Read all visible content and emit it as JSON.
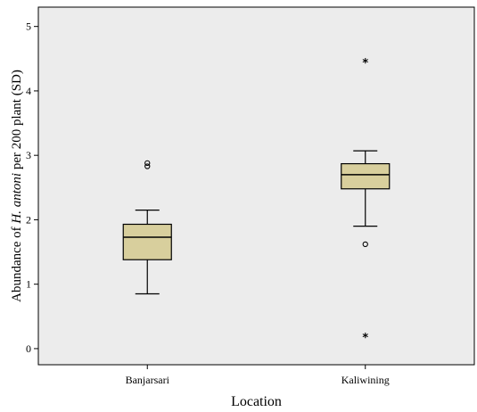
{
  "chart_data": {
    "type": "boxplot",
    "title": "",
    "xlabel": "Location",
    "ylabel": {
      "prefix": "Abundance of ",
      "species": "H. antoni",
      "suffix": " per 200 plant (SD)"
    },
    "ylim": [
      -0.25,
      5.3
    ],
    "yticks": [
      0,
      1,
      2,
      3,
      4,
      5
    ],
    "grid": false,
    "colors": {
      "box_fill": "#d8cf9d",
      "plot_bg": "#ececec",
      "line": "#000000"
    },
    "categories": [
      "Banjarsari",
      "Kaliwining"
    ],
    "boxes": [
      {
        "category": "Banjarsari",
        "whisker_low": 0.85,
        "q1": 1.38,
        "median": 1.73,
        "q3": 1.93,
        "whisker_high": 2.15,
        "outliers": [
          {
            "value": 2.88,
            "symbol": "circle"
          },
          {
            "value": 2.83,
            "symbol": "circle"
          }
        ]
      },
      {
        "category": "Kaliwining",
        "whisker_low": 1.9,
        "q1": 2.48,
        "median": 2.7,
        "q3": 2.87,
        "whisker_high": 3.07,
        "outliers": [
          {
            "value": 1.62,
            "symbol": "circle"
          },
          {
            "value": 4.44,
            "symbol": "star"
          },
          {
            "value": 0.18,
            "symbol": "star"
          }
        ]
      }
    ]
  }
}
